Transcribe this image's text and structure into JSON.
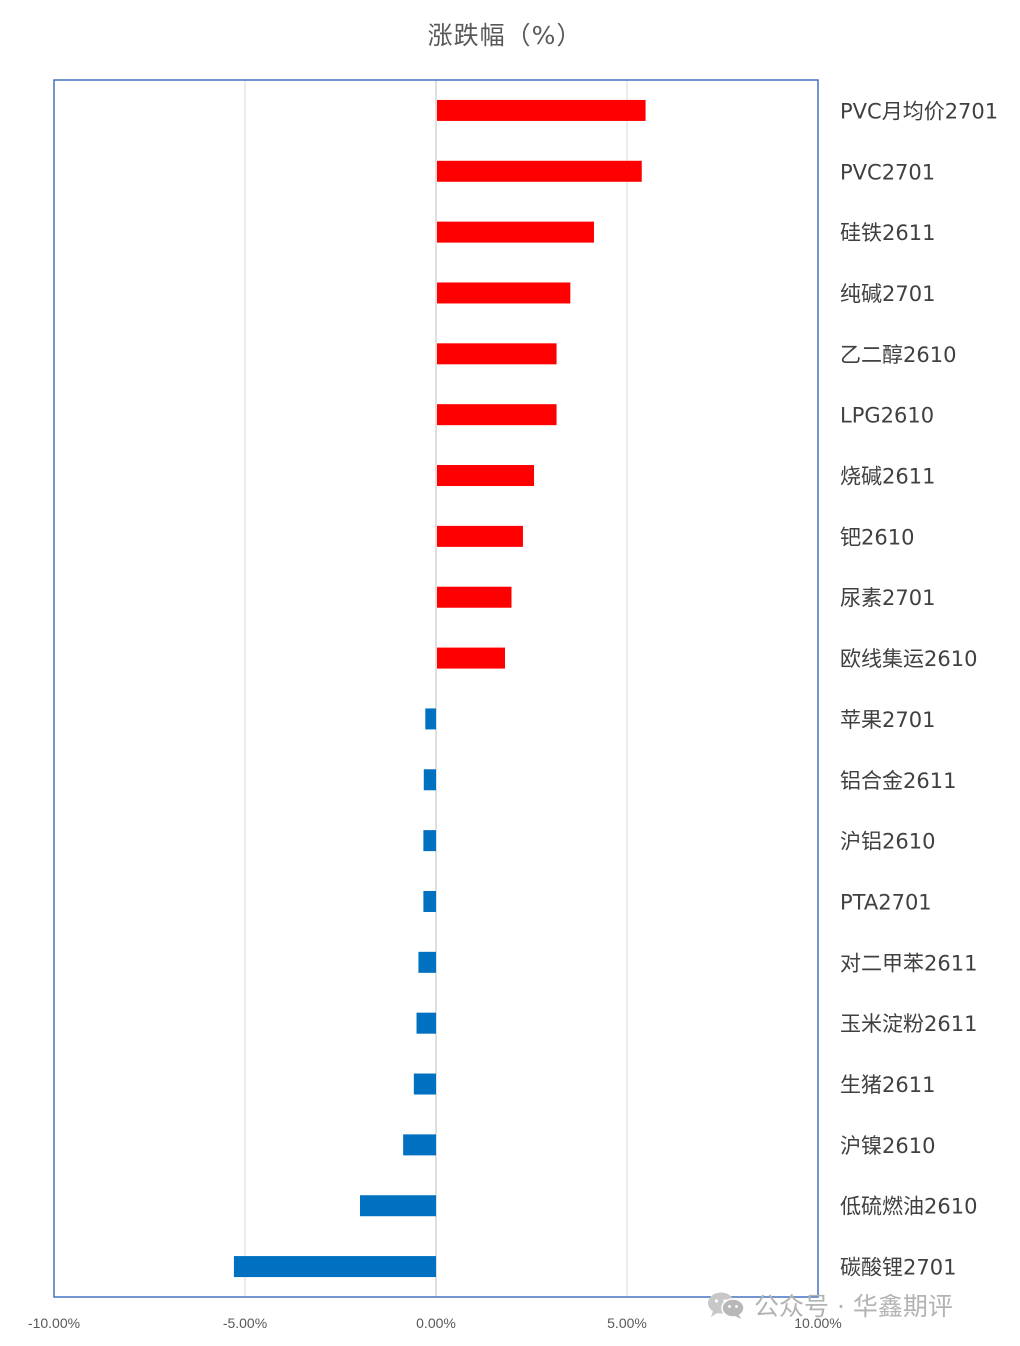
{
  "chart_data": {
    "type": "bar",
    "orientation": "horizontal",
    "title": "涨跌幅（%）",
    "categories": [
      "PVC月均价2701",
      "PVC2701",
      "硅铁2611",
      "纯碱2701",
      "乙二醇2610",
      "LPG2610",
      "烧碱2611",
      "钯2610",
      "尿素2701",
      "欧线集运2610",
      "苹果2701",
      "铝合金2611",
      "沪铝2610",
      "PTA2701",
      "对二甲苯2611",
      "玉米淀粉2611",
      "生猪2611",
      "沪镍2610",
      "低硫燃油2610",
      "碳酸锂2701"
    ],
    "values": [
      5.46,
      5.36,
      4.11,
      3.49,
      3.13,
      3.13,
      2.54,
      2.25,
      1.95,
      1.78,
      -0.28,
      -0.32,
      -0.33,
      -0.33,
      -0.46,
      -0.51,
      -0.58,
      -0.86,
      -1.99,
      -5.29
    ],
    "xlim": [
      -10,
      10
    ],
    "xticks": [
      "-10.00%",
      "-5.00%",
      "0.00%",
      "5.00%",
      "10.00%"
    ],
    "xtick_values": [
      -10,
      -5,
      0,
      5,
      10
    ],
    "grid": "vertical",
    "legend": "none",
    "colors": {
      "positive": "#ff0000",
      "negative": "#0070c0",
      "axis_frame": "#4472c4",
      "gridline": "#d9d9d9"
    }
  },
  "watermark": {
    "text": "公众号 · 华鑫期评",
    "icon": "wechat-icon"
  }
}
